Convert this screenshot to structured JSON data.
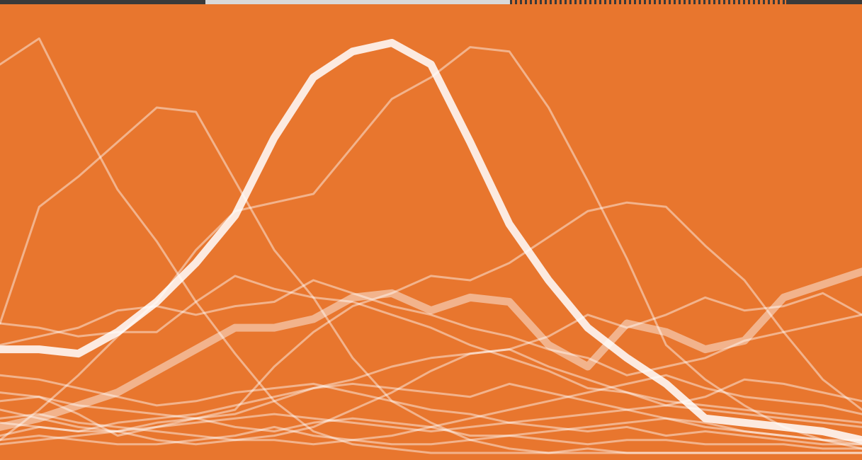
{
  "colors": {
    "background": "#e8762e",
    "line": "#ffffff",
    "photo_strip_dark": "#3a3a3a",
    "photo_strip_light": "#d9d9d9"
  },
  "chart_data": {
    "type": "line",
    "title": "",
    "xlabel": "",
    "ylabel": "",
    "grid": false,
    "legend": "none",
    "xlim": [
      0,
      22
    ],
    "ylim": [
      0,
      100
    ],
    "x": [
      0,
      1,
      2,
      3,
      4,
      5,
      6,
      7,
      8,
      9,
      10,
      11,
      12,
      13,
      14,
      15,
      16,
      17,
      18,
      19,
      20,
      21,
      22
    ],
    "series": [
      {
        "emphasis": "primary",
        "values": [
          24,
          24,
          23,
          28,
          35,
          44,
          55,
          73,
          87,
          93,
          95,
          90,
          72,
          53,
          40,
          29,
          22,
          16,
          8,
          7,
          6,
          5,
          3
        ]
      },
      {
        "emphasis": "secondary",
        "values": [
          6,
          8,
          11,
          14,
          19,
          24,
          29,
          29,
          31,
          36,
          37,
          33,
          36,
          35,
          25,
          20,
          30,
          28,
          24,
          26,
          36,
          39,
          42
        ]
      },
      {
        "emphasis": "faint",
        "values": [
          90,
          96,
          78,
          61,
          49,
          35,
          23,
          12,
          5,
          2,
          1,
          0,
          0,
          0,
          0,
          0,
          0,
          0,
          0,
          0,
          0,
          0,
          0
        ]
      },
      {
        "emphasis": "faint",
        "values": [
          30,
          57,
          64,
          72,
          80,
          79,
          63,
          47,
          36,
          22,
          12,
          7,
          3,
          1,
          0,
          1,
          0,
          0,
          0,
          0,
          0,
          0,
          0
        ]
      },
      {
        "emphasis": "faint",
        "values": [
          3,
          10,
          18,
          27,
          35,
          47,
          56,
          58,
          60,
          71,
          82,
          87,
          94,
          93,
          80,
          63,
          45,
          25,
          17,
          11,
          6,
          3,
          1
        ]
      },
      {
        "emphasis": "faint",
        "values": [
          14,
          13,
          9,
          4,
          6,
          8,
          10,
          20,
          28,
          34,
          37,
          41,
          40,
          44,
          50,
          56,
          58,
          57,
          48,
          40,
          28,
          17,
          10
        ]
      },
      {
        "emphasis": "faint",
        "values": [
          25,
          27,
          29,
          33,
          34,
          32,
          34,
          35,
          40,
          37,
          34,
          32,
          29,
          27,
          24,
          22,
          18,
          20,
          22,
          26,
          28,
          30,
          32
        ]
      },
      {
        "emphasis": "faint",
        "values": [
          30,
          29,
          27,
          28,
          28,
          35,
          41,
          38,
          36,
          35,
          32,
          29,
          25,
          22,
          19,
          15,
          14,
          12,
          11,
          10,
          9,
          8,
          7
        ]
      },
      {
        "emphasis": "faint",
        "values": [
          10,
          8,
          6,
          5,
          3,
          2,
          3,
          4,
          6,
          10,
          14,
          19,
          23,
          24,
          27,
          32,
          29,
          32,
          36,
          33,
          34,
          37,
          32
        ]
      },
      {
        "emphasis": "faint",
        "values": [
          2,
          3,
          4,
          5,
          7,
          8,
          9,
          12,
          15,
          17,
          20,
          22,
          23,
          24,
          20,
          17,
          14,
          11,
          13,
          17,
          16,
          14,
          12
        ]
      },
      {
        "emphasis": "faint",
        "values": [
          18,
          17,
          15,
          13,
          11,
          12,
          14,
          15,
          16,
          14,
          12,
          10,
          9,
          7,
          6,
          5,
          6,
          4,
          5,
          4,
          3,
          2,
          2
        ]
      },
      {
        "emphasis": "faint",
        "values": [
          12,
          13,
          11,
          10,
          9,
          8,
          6,
          5,
          7,
          8,
          7,
          6,
          4,
          4,
          3,
          2,
          3,
          3,
          2,
          2,
          2,
          1,
          1
        ]
      },
      {
        "emphasis": "faint",
        "values": [
          4,
          6,
          5,
          7,
          8,
          9,
          11,
          13,
          15,
          16,
          15,
          14,
          13,
          16,
          14,
          12,
          10,
          8,
          6,
          5,
          4,
          3,
          3
        ]
      },
      {
        "emphasis": "faint",
        "values": [
          8,
          9,
          7,
          6,
          5,
          4,
          3,
          3,
          2,
          3,
          4,
          6,
          8,
          10,
          12,
          14,
          16,
          18,
          15,
          13,
          12,
          11,
          9
        ]
      },
      {
        "emphasis": "faint",
        "values": [
          3,
          4,
          3,
          2,
          2,
          3,
          4,
          6,
          4,
          3,
          2,
          2,
          3,
          4,
          5,
          6,
          7,
          8,
          7,
          5,
          4,
          3,
          2
        ]
      },
      {
        "emphasis": "faint",
        "values": [
          7,
          6,
          5,
          5,
          6,
          7,
          8,
          9,
          8,
          7,
          6,
          5,
          6,
          7,
          8,
          9,
          10,
          11,
          10,
          9,
          8,
          7,
          6
        ]
      }
    ]
  }
}
